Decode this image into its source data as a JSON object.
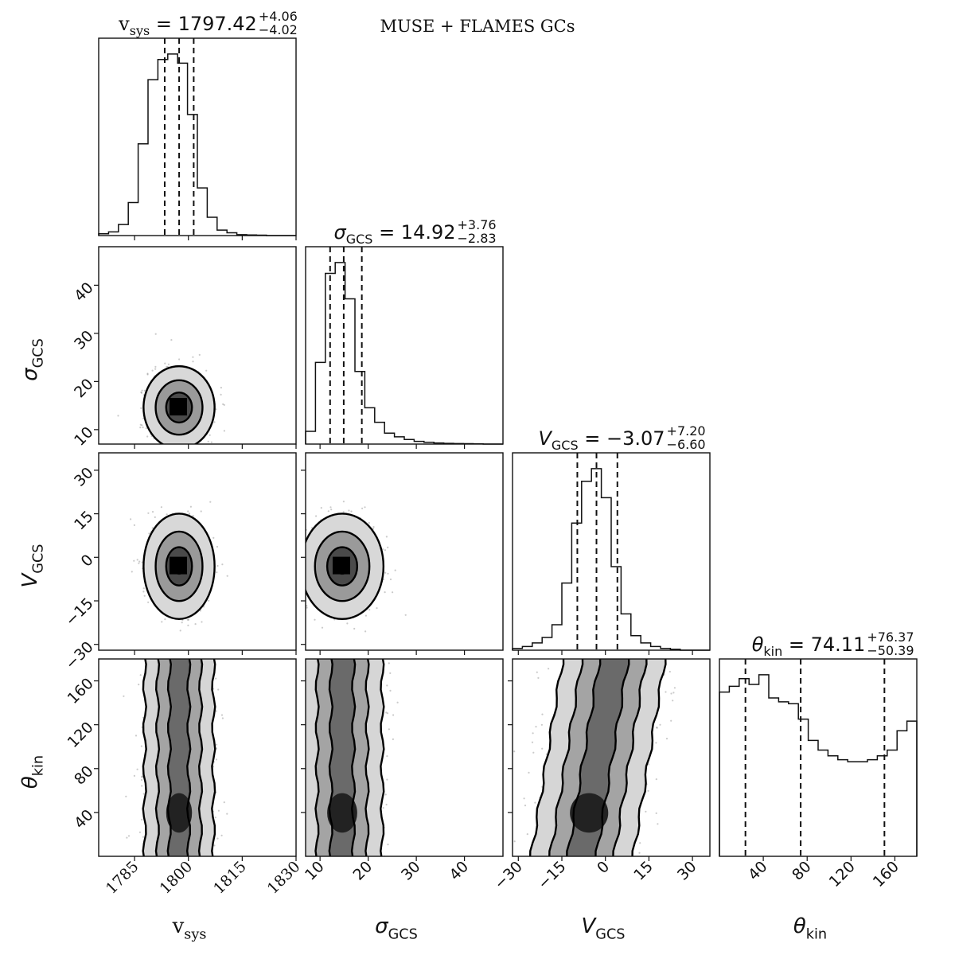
{
  "figure": {
    "suptitle": "MUSE + FLAMES GCs"
  },
  "chart_data": {
    "type": "corner",
    "title": "MUSE + FLAMES GCs",
    "parameters": [
      {
        "name": "vsys",
        "label_main": "v",
        "label_sub": "sys",
        "label_style": "serif",
        "range": [
          1775,
          1830
        ],
        "ticks": [
          1785,
          1800,
          1815,
          1830
        ],
        "median": "1797.42",
        "err_plus": "+4.06",
        "err_minus": "−4.02",
        "quantiles": [
          1793.4,
          1797.42,
          1801.48
        ],
        "histogram": {
          "edges_start": 1775,
          "bin_width": 2.75,
          "counts": [
            0.01,
            0.02,
            0.06,
            0.18,
            0.5,
            0.85,
            0.96,
            0.99,
            0.94,
            0.66,
            0.26,
            0.1,
            0.03,
            0.015,
            0.005,
            0.003,
            0.002,
            0,
            0,
            0
          ]
        }
      },
      {
        "name": "sigmaGCS",
        "label_main": "σ",
        "label_sub": "GCS",
        "label_style": "math",
        "range": [
          7,
          48
        ],
        "ticks": [
          10,
          20,
          30,
          40
        ],
        "median": "14.92",
        "err_plus": "+3.76",
        "err_minus": "−2.83",
        "quantiles": [
          12.09,
          14.92,
          18.68
        ],
        "histogram": {
          "edges_start": 7,
          "bin_width": 2.05,
          "counts": [
            0.07,
            0.45,
            0.94,
            1.0,
            0.8,
            0.4,
            0.2,
            0.12,
            0.06,
            0.04,
            0.025,
            0.015,
            0.01,
            0.006,
            0.004,
            0.003,
            0.002,
            0.001,
            0,
            0
          ]
        }
      },
      {
        "name": "VGCS",
        "label_main": "V",
        "label_sub": "GCS",
        "label_style": "math",
        "range": [
          -32,
          36
        ],
        "ticks": [
          -30,
          -15,
          0,
          15,
          30
        ],
        "median": "−3.07",
        "err_plus": "+7.20",
        "err_minus": "−6.60",
        "quantiles": [
          -9.67,
          -3.07,
          4.13
        ],
        "histogram": {
          "edges_start": -32,
          "bin_width": 3.4,
          "counts": [
            0.01,
            0.02,
            0.04,
            0.07,
            0.14,
            0.37,
            0.7,
            0.93,
            1.0,
            0.84,
            0.46,
            0.2,
            0.08,
            0.04,
            0.02,
            0.01,
            0.005,
            0,
            0,
            0
          ]
        }
      },
      {
        "name": "thetakin",
        "label_main": "θ",
        "label_sub": "kin",
        "label_style": "math",
        "range": [
          0,
          180
        ],
        "ticks": [
          40,
          80,
          120,
          160
        ],
        "median": "74.11",
        "err_plus": "+76.37",
        "err_minus": "−50.39",
        "quantiles": [
          23.72,
          74.11,
          150.48
        ],
        "histogram": {
          "edges_start": 0,
          "bin_width": 9,
          "counts": [
            0.85,
            0.88,
            0.92,
            0.89,
            0.94,
            0.82,
            0.8,
            0.79,
            0.71,
            0.6,
            0.55,
            0.52,
            0.5,
            0.49,
            0.49,
            0.5,
            0.52,
            0.55,
            0.65,
            0.7
          ]
        }
      }
    ],
    "pair_panels": [
      {
        "x": "vsys",
        "y": "sigmaGCS",
        "center": [
          1797.4,
          14.6
        ],
        "spread": [
          3.0,
          2.6
        ],
        "elongation": "round"
      },
      {
        "x": "vsys",
        "y": "VGCS",
        "center": [
          1797.4,
          -3.1
        ],
        "spread": [
          3.0,
          5.5
        ],
        "elongation": "round"
      },
      {
        "x": "sigmaGCS",
        "y": "VGCS",
        "center": [
          14.6,
          -3.1
        ],
        "spread": [
          2.6,
          5.5
        ],
        "elongation": "round"
      },
      {
        "x": "vsys",
        "y": "thetakin",
        "center": [
          1797.4,
          90
        ],
        "spread": [
          3.0,
          55
        ],
        "elongation": "vertical-band"
      },
      {
        "x": "sigmaGCS",
        "y": "thetakin",
        "center": [
          14.6,
          90
        ],
        "spread": [
          2.6,
          55
        ],
        "elongation": "vertical-band"
      },
      {
        "x": "VGCS",
        "y": "thetakin",
        "center": [
          -3.1,
          90
        ],
        "spread": [
          5.5,
          55
        ],
        "elongation": "tilted-band"
      }
    ],
    "contour_levels": 3,
    "grid": false,
    "legend": "none"
  }
}
